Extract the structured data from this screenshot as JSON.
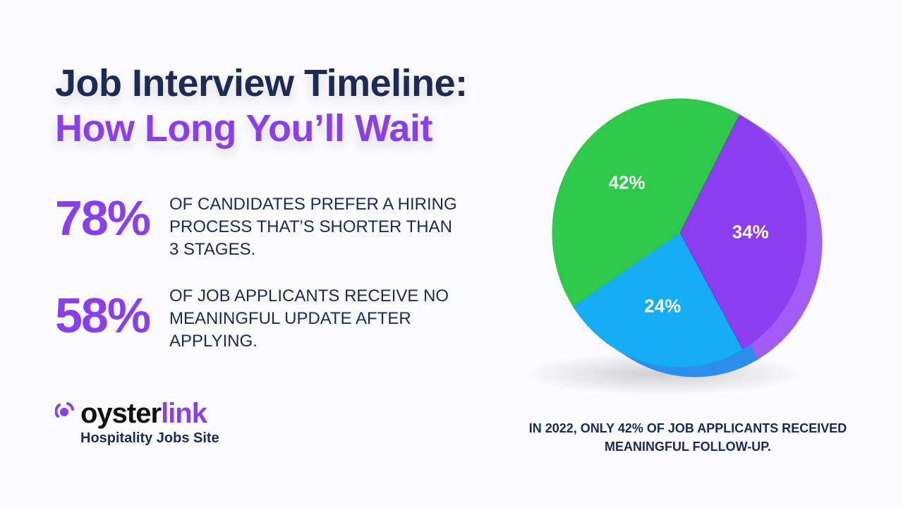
{
  "title": {
    "line1": "Job Interview Timeline:",
    "line2": "How Long You’ll Wait"
  },
  "stats": [
    {
      "value": "78%",
      "text": "OF CANDIDATES PREFER A HIRING PROCESS THAT’S SHORTER THAN 3 STAGES."
    },
    {
      "value": "58%",
      "text": "OF JOB APPLICANTS RECEIVE NO MEANINGFUL UPDATE AFTER APPLYING."
    }
  ],
  "logo": {
    "word_a": "oyster",
    "word_b": "link",
    "subtitle": "Hospitality Jobs Site"
  },
  "caption": "IN 2022, ONLY 42% OF JOB APPLICANTS RECEIVED MEANINGFUL FOLLOW-UP.",
  "chart_data": {
    "type": "pie",
    "title": "",
    "slices": [
      {
        "label": "34%",
        "value": 34,
        "color": "#8a3ef0",
        "side": "#a05cf5"
      },
      {
        "label": "24%",
        "value": 24,
        "color": "#14aef5",
        "side": "#2a8fe8"
      },
      {
        "label": "42%",
        "value": 42,
        "color": "#2ec84a",
        "side": "#26a83d"
      }
    ]
  }
}
